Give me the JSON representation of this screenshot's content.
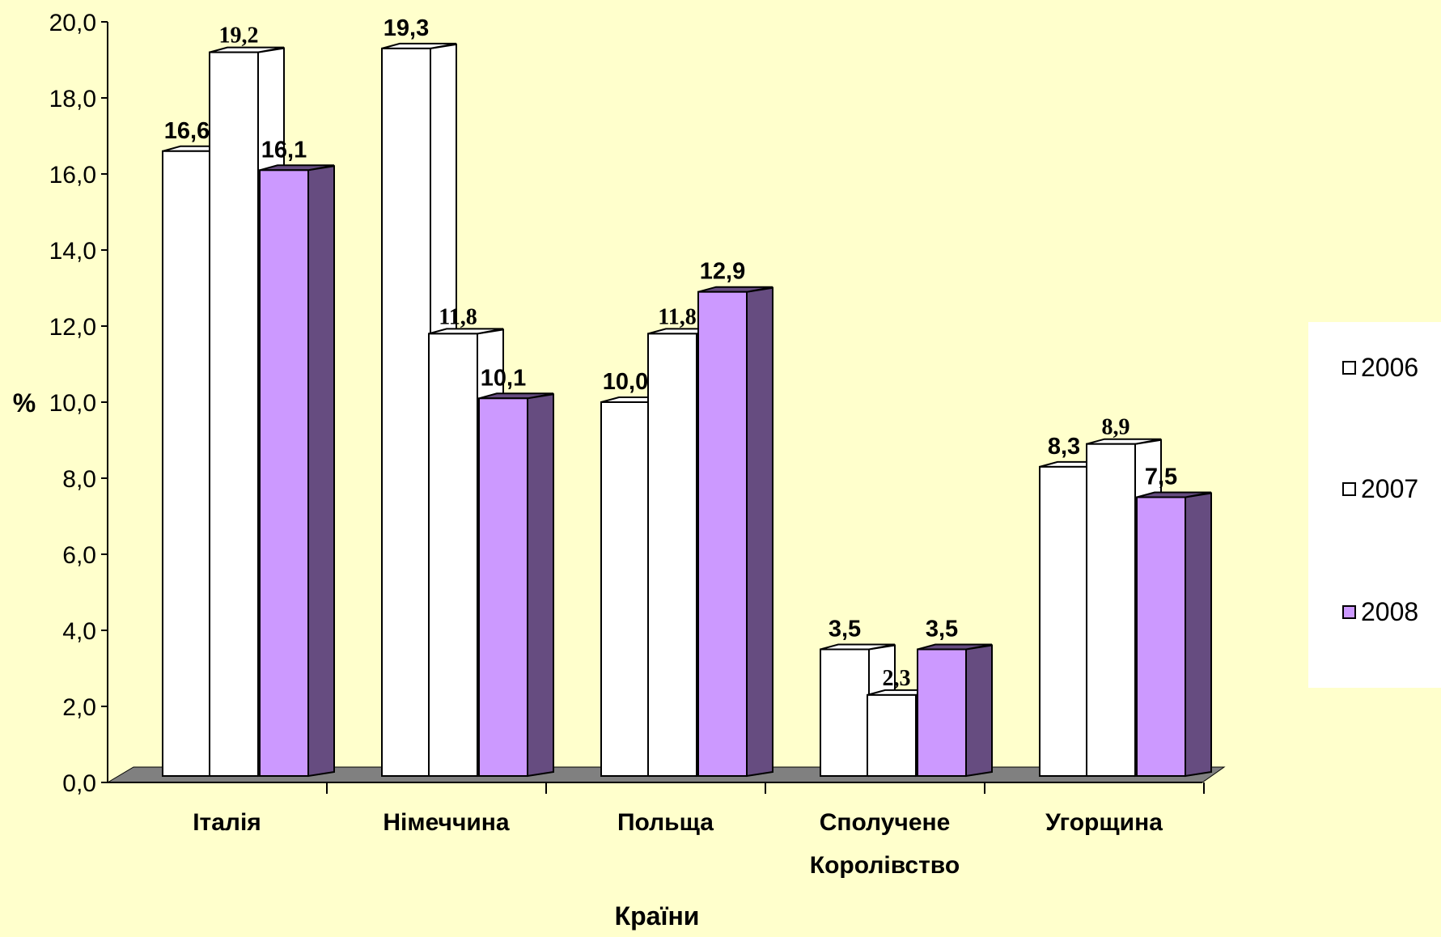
{
  "chart_data": {
    "type": "bar",
    "categories": [
      "Італія",
      "Німеччина",
      "Польща",
      "Сполучене Королівство",
      "Угорщина"
    ],
    "category_lines": [
      [
        "Італія"
      ],
      [
        "Німеччина"
      ],
      [
        "Польща"
      ],
      [
        "Сполучене",
        "Королівство"
      ],
      [
        "Угорщина"
      ]
    ],
    "series": [
      {
        "name": "2006",
        "values": [
          16.6,
          19.3,
          10.0,
          3.5,
          8.3
        ],
        "labels": [
          "16,6",
          "19,3",
          "10,0",
          "3,5",
          "8,3"
        ],
        "color": "#FFFFFF",
        "side_color": "#FFFFFF"
      },
      {
        "name": "2007",
        "values": [
          19.2,
          11.8,
          11.8,
          2.3,
          8.9
        ],
        "labels": [
          "19,2",
          "11,8",
          "11,8",
          "2,3",
          "8,9"
        ],
        "color": "#FFFFFF",
        "side_color": "#FFFFFF"
      },
      {
        "name": "2008",
        "values": [
          16.1,
          10.1,
          12.9,
          3.5,
          7.5
        ],
        "labels": [
          "16,1",
          "10,1",
          "12,9",
          "3,5",
          "7,5"
        ],
        "color": "#CC99FF",
        "side_color": "#664C80"
      }
    ],
    "yticks": [
      "0,0",
      "2,0",
      "4,0",
      "6,0",
      "8,0",
      "10,0",
      "12,0",
      "14,0",
      "16,0",
      "18,0",
      "20,0"
    ],
    "ylim": [
      0,
      20
    ],
    "ylabel": "%",
    "xlabel": "Країни",
    "legend_position": "right",
    "background": "#FFFFCC",
    "floor_color": "#808080"
  }
}
